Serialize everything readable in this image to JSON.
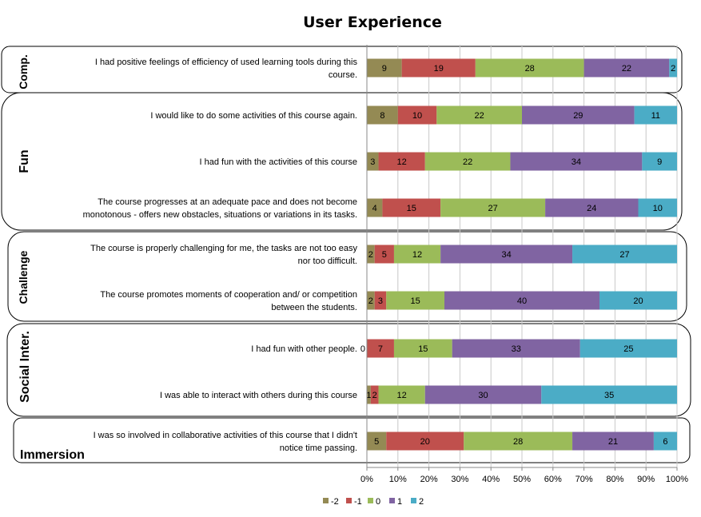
{
  "chart_data": {
    "type": "bar",
    "orientation": "horizontal",
    "stacked": "percent",
    "title": "User Experience",
    "xlim": [
      0,
      100
    ],
    "x_ticks": [
      "0%",
      "10%",
      "20%",
      "30%",
      "40%",
      "50%",
      "60%",
      "70%",
      "80%",
      "90%",
      "100%"
    ],
    "grid": true,
    "legend_position": "bottom",
    "series": [
      {
        "name": "-2",
        "color": "#948A54"
      },
      {
        "name": "-1",
        "color": "#C0504D"
      },
      {
        "name": "0",
        "color": "#9BBB59"
      },
      {
        "name": "1",
        "color": "#8064A2"
      },
      {
        "name": "2",
        "color": "#4BACC6"
      }
    ],
    "groups": [
      {
        "label": "Comp.",
        "items": [
          {
            "lines": [
              "I had positive feelings of efficiency of used learning tools during  this",
              "course."
            ],
            "values": [
              9,
              19,
              28,
              22,
              2
            ]
          }
        ]
      },
      {
        "label": "Fun",
        "items": [
          {
            "lines": [
              "I would like to do some activities of this course again."
            ],
            "values": [
              8,
              10,
              22,
              29,
              11
            ]
          },
          {
            "lines": [
              "I had fun with the activities of this course"
            ],
            "values": [
              3,
              12,
              22,
              34,
              9
            ]
          },
          {
            "lines": [
              "The course progresses at an adequate pace and does not become",
              "monotonous - offers new obstacles, situations or variations in its tasks."
            ],
            "values": [
              4,
              15,
              27,
              24,
              10
            ]
          }
        ]
      },
      {
        "label": "Challenge",
        "items": [
          {
            "lines": [
              "The course is properly challenging for me, the tasks are not too easy",
              "nor too difficult."
            ],
            "values": [
              2,
              5,
              12,
              34,
              27
            ]
          },
          {
            "lines": [
              "The course promotes moments of cooperation and/ or competition",
              "between the students."
            ],
            "values": [
              2,
              3,
              15,
              40,
              20
            ]
          }
        ]
      },
      {
        "label": "Social Inter.",
        "items": [
          {
            "lines": [
              "I had fun with other people."
            ],
            "values": [
              0,
              7,
              15,
              33,
              25
            ]
          },
          {
            "lines": [
              "I was able to interact with others during this course"
            ],
            "values": [
              1,
              2,
              12,
              30,
              35
            ]
          }
        ]
      },
      {
        "label": "Immersion",
        "items": [
          {
            "lines": [
              "I was so involved in collaborative activities of this course that I didn't",
              "notice time passing."
            ],
            "values": [
              5,
              20,
              28,
              21,
              6
            ]
          }
        ]
      }
    ]
  }
}
